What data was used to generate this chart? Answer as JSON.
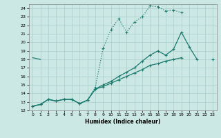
{
  "xlabel": "Humidex (Indice chaleur)",
  "xlim": [
    -0.5,
    23.5
  ],
  "ylim": [
    12,
    24.5
  ],
  "xticks": [
    0,
    1,
    2,
    3,
    4,
    5,
    6,
    7,
    8,
    9,
    10,
    11,
    12,
    13,
    14,
    15,
    16,
    17,
    18,
    19,
    20,
    21,
    22,
    23
  ],
  "yticks": [
    12,
    13,
    14,
    15,
    16,
    17,
    18,
    19,
    20,
    21,
    22,
    23,
    24
  ],
  "bg_color": "#cce8e4",
  "grid_color": "#aacfcb",
  "line_color": "#1a7a6e",
  "line1_x": [
    0,
    1,
    2,
    3,
    4,
    5,
    6,
    7,
    8,
    9,
    10,
    11,
    12,
    13,
    14,
    15,
    16,
    17,
    18,
    19
  ],
  "line1_y": [
    12.5,
    12.7,
    13.3,
    13.1,
    13.3,
    13.3,
    12.8,
    13.2,
    14.7,
    19.3,
    21.5,
    22.8,
    21.2,
    22.4,
    23.0,
    24.3,
    24.2,
    23.7,
    23.8,
    23.5
  ],
  "line2_x": [
    0,
    1,
    2,
    3,
    4,
    5,
    6,
    7,
    8,
    9,
    10,
    11,
    12,
    13,
    14,
    15,
    16,
    17,
    18,
    19,
    20,
    21,
    22
  ],
  "line2_y": [
    12.5,
    12.7,
    13.3,
    13.1,
    13.3,
    13.3,
    12.8,
    13.2,
    14.5,
    15.0,
    15.4,
    16.0,
    16.5,
    17.0,
    17.8,
    18.5,
    19.0,
    18.5,
    19.2,
    21.2,
    19.5,
    18.0,
    null
  ],
  "line3_x": [
    0,
    1,
    2,
    3,
    4,
    5,
    6,
    7,
    8,
    9,
    10,
    11,
    12,
    13,
    14,
    15,
    16,
    17,
    18,
    19,
    20,
    21,
    22,
    23
  ],
  "line3_y": [
    12.5,
    12.7,
    13.3,
    13.1,
    13.3,
    13.3,
    12.8,
    13.2,
    14.5,
    14.8,
    15.2,
    15.6,
    16.0,
    16.4,
    16.8,
    17.3,
    17.5,
    17.8,
    18.0,
    18.2,
    18.3,
    null,
    null,
    18.0
  ]
}
